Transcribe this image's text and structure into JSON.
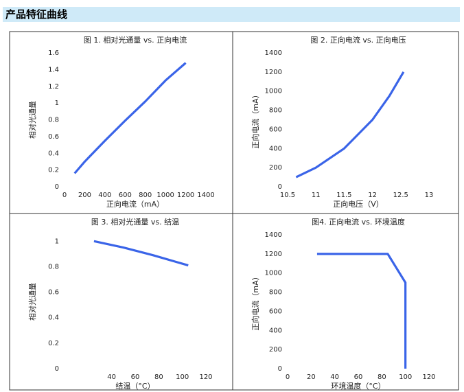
{
  "header": {
    "title": "产品特征曲线"
  },
  "chart_data": [
    {
      "type": "line",
      "title": "图 1. 相对光通量 vs. 正向电流",
      "x_label": "正向电流（mA）",
      "y_label": "相对光通量",
      "x": [
        100,
        200,
        400,
        600,
        800,
        1000,
        1200
      ],
      "values": [
        0.16,
        0.3,
        0.55,
        0.79,
        1.02,
        1.27,
        1.48
      ],
      "color": "#3a64e8",
      "xlim": [
        0,
        1400
      ],
      "xticks": [
        0,
        200,
        400,
        600,
        800,
        1000,
        1200,
        1400
      ],
      "ylim": [
        0,
        1.6
      ],
      "yticks": [
        0,
        0.2,
        0.4,
        0.6,
        0.8,
        1,
        1.2,
        1.4,
        1.6
      ]
    },
    {
      "type": "line",
      "title": "图 2. 正向电流 vs. 正向电压",
      "x_label": "正向电压（V）",
      "y_label": "正向电流（mA）",
      "x": [
        10.65,
        11,
        11.5,
        12,
        12.3,
        12.55
      ],
      "values": [
        100,
        200,
        400,
        700,
        950,
        1200
      ],
      "color": "#3a64e8",
      "xlim": [
        10.5,
        13
      ],
      "xticks": [
        10.5,
        11,
        11.5,
        12,
        12.5,
        13
      ],
      "ylim": [
        0,
        1400
      ],
      "yticks": [
        0,
        200,
        400,
        600,
        800,
        1000,
        1200,
        1400
      ]
    },
    {
      "type": "line",
      "title": "图 3. 相对光通量 vs. 结温",
      "x_label": "结温（°C）",
      "y_label": "相对光通量",
      "x": [
        25,
        50,
        75,
        105
      ],
      "values": [
        1.0,
        0.95,
        0.89,
        0.81
      ],
      "color": "#3a64e8",
      "xlim": [
        0,
        120
      ],
      "xticks": [
        40,
        60,
        80,
        100,
        120
      ],
      "ylim": [
        0,
        1.05
      ],
      "yticks": [
        0,
        0.2,
        0.4,
        0.6,
        0.8,
        1
      ]
    },
    {
      "type": "line",
      "title": "图4. 正向电流 vs. 环境温度",
      "x_label": "环境温度（°C）",
      "y_label": "正向电流（mA）",
      "x": [
        25,
        85,
        100,
        100
      ],
      "values": [
        1200,
        1200,
        900,
        0
      ],
      "color": "#3a64e8",
      "xlim": [
        0,
        120
      ],
      "xticks": [
        0,
        20,
        40,
        60,
        80,
        100,
        120
      ],
      "ylim": [
        0,
        1400
      ],
      "yticks": [
        0,
        200,
        400,
        600,
        800,
        1000,
        1200,
        1400
      ]
    }
  ]
}
